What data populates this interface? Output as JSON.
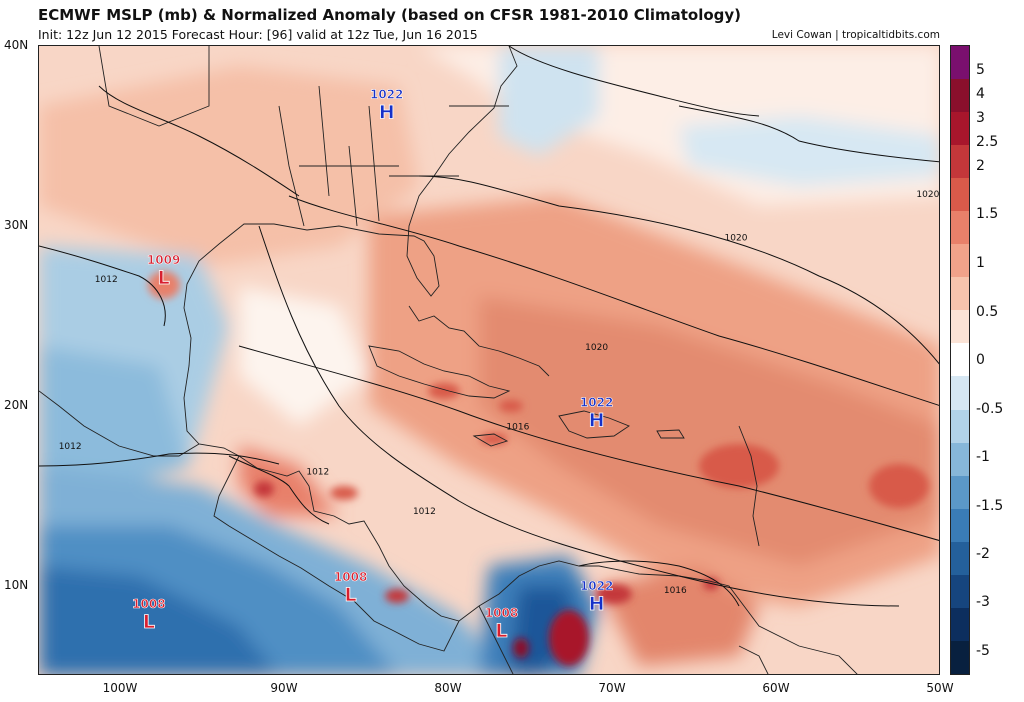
{
  "header": {
    "title": "ECMWF MSLP (mb) & Normalized Anomaly (based on CFSR 1981-2010 Climatology)",
    "subtitle": "Init: 12z Jun 12 2015   Forecast Hour: [96]   valid at 12z Tue, Jun 16 2015",
    "credit": "Levi Cowan | tropicaltidbits.com"
  },
  "axes": {
    "lat_labels": [
      "40N",
      "30N",
      "20N",
      "10N"
    ],
    "lon_labels": [
      "100W",
      "90W",
      "80W",
      "70W",
      "60W",
      "50W"
    ],
    "lat_range": [
      5,
      40
    ],
    "lon_range": [
      -105,
      -50
    ]
  },
  "colorbar": {
    "labels": [
      "5",
      "4",
      "3",
      "2.5",
      "2",
      "1.5",
      "1",
      "0.5",
      "0",
      "-0.5",
      "-1",
      "-1.5",
      "-2",
      "-3",
      "-5"
    ],
    "colors": [
      "#7a0f6e",
      "#8a0f2c",
      "#a8162c",
      "#c4373a",
      "#d85a4a",
      "#e8806a",
      "#f1a28a",
      "#f7c4ad",
      "#fbe3d6",
      "#ffffff",
      "#d6e7f3",
      "#b2d2e8",
      "#87b7d9",
      "#5b98c8",
      "#3a7cb6",
      "#24609b",
      "#16457e",
      "#0c2e5e",
      "#08203f"
    ]
  },
  "pressure_centers": [
    {
      "type": "H",
      "value": "1022",
      "lon": -83.8,
      "lat": 36.3,
      "color": "#1530c8"
    },
    {
      "type": "L",
      "value": "1009",
      "lon": -97.4,
      "lat": 27.1,
      "color": "#d81f2f"
    },
    {
      "type": "H",
      "value": "1022",
      "lon": -71.0,
      "lat": 19.2,
      "color": "#1530c8"
    },
    {
      "type": "L",
      "value": "1008",
      "lon": -86.0,
      "lat": 9.5,
      "color": "#d81f2f"
    },
    {
      "type": "L",
      "value": "1008",
      "lon": -98.3,
      "lat": 8.0,
      "color": "#d81f2f"
    },
    {
      "type": "L",
      "value": "1008",
      "lon": -76.8,
      "lat": 7.5,
      "color": "#d81f2f"
    },
    {
      "type": "H",
      "value": "1022",
      "lon": -71.0,
      "lat": 9.0,
      "color": "#1530c8"
    }
  ],
  "isobar_labels": [
    {
      "value": "1020",
      "lon": -50.8,
      "lat": 31.6
    },
    {
      "value": "1020",
      "lon": -62.5,
      "lat": 29.2
    },
    {
      "value": "1020",
      "lon": -71.0,
      "lat": 23.1
    },
    {
      "value": "1016",
      "lon": -75.8,
      "lat": 18.7
    },
    {
      "value": "1012",
      "lon": -81.5,
      "lat": 14.0
    },
    {
      "value": "1012",
      "lon": -88.0,
      "lat": 16.2
    },
    {
      "value": "1012",
      "lon": -103.1,
      "lat": 17.6
    },
    {
      "value": "1012",
      "lon": -100.9,
      "lat": 26.9
    },
    {
      "value": "1016",
      "lon": -66.2,
      "lat": 9.6
    }
  ]
}
